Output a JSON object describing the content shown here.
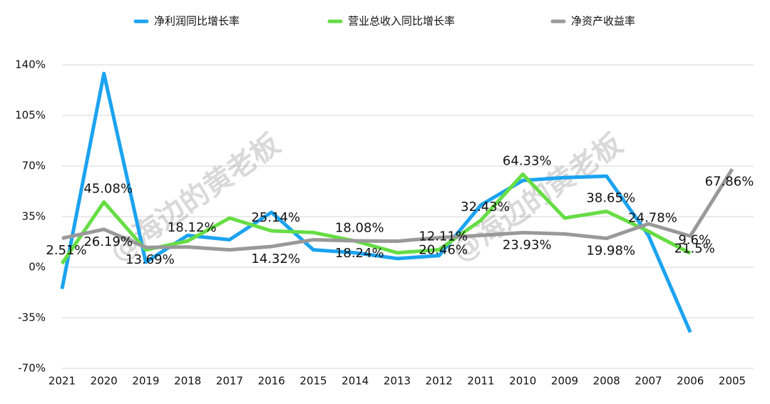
{
  "chart_data": {
    "type": "line",
    "categories": [
      "2021",
      "2020",
      "2019",
      "2018",
      "2017",
      "2016",
      "2015",
      "2014",
      "2013",
      "2012",
      "2011",
      "2010",
      "2009",
      "2008",
      "2007",
      "2006",
      "2005"
    ],
    "series": [
      {
        "name": "净利润同比增长率",
        "color": "#1ba3f0",
        "values": [
          -15,
          134,
          3.5,
          22,
          19,
          38,
          12,
          10,
          6,
          8,
          43,
          60,
          62,
          63,
          22,
          -45,
          null
        ]
      },
      {
        "name": "营业总收入同比增长率",
        "color": "#66dd44",
        "values": [
          2.51,
          45.08,
          12,
          18.12,
          34,
          25.14,
          24,
          18.08,
          10,
          12.11,
          32.43,
          64.33,
          34,
          38.65,
          24.78,
          9.6,
          null
        ],
        "value_labels": [
          "2.51%",
          "45.08%",
          null,
          "18.12%",
          null,
          "25.14%",
          null,
          "18.08%",
          null,
          "12.11%",
          "32.43%",
          "64.33%",
          null,
          "38.65%",
          "24.78%",
          "9.6%",
          null
        ]
      },
      {
        "name": "净资产收益率",
        "color": "#999999",
        "values": [
          20,
          26.19,
          13.69,
          14,
          12,
          14.32,
          19,
          18.24,
          18,
          20.46,
          22,
          23.93,
          23,
          19.98,
          30,
          21.5,
          67.86
        ],
        "value_labels": [
          null,
          "26.19%",
          "13.69%",
          null,
          null,
          "14.32%",
          null,
          "18.24%",
          null,
          "20.46%",
          null,
          "23.93%",
          null,
          "19.98%",
          null,
          "21.5%",
          "67.86%"
        ]
      }
    ],
    "ylim": [
      -70,
      140
    ],
    "yticks": [
      {
        "value": -70,
        "label": "-70%"
      },
      {
        "value": -35,
        "label": "-35%"
      },
      {
        "value": 0,
        "label": "0%"
      },
      {
        "value": 35,
        "label": "35%"
      },
      {
        "value": 70,
        "label": "70%"
      },
      {
        "value": 105,
        "label": "105%"
      },
      {
        "value": 140,
        "label": "140%"
      }
    ],
    "grid": true,
    "watermarks": [
      "@海边的黄老板",
      "@海边的黄老板"
    ]
  }
}
